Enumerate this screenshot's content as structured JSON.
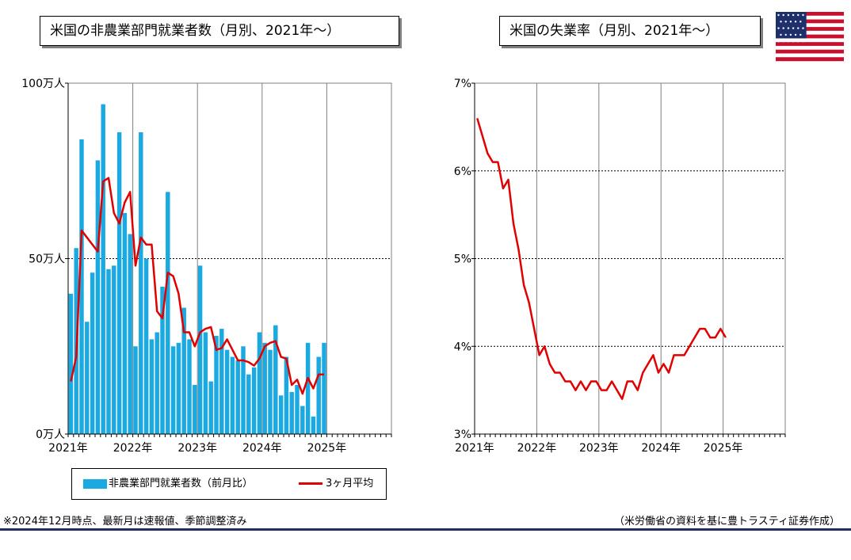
{
  "left_title": "米国の非農業部門就業者数（月別、2021年～）",
  "right_title": "米国の失業率（月別、2021年～）",
  "note_left": "※2024年12月時点、最新月は速報値、季節調整済み",
  "note_right": "（米労働省の資料を基に豊トラスティ証券作成）",
  "legend": {
    "bar_label": "非農業部門就業者数（前月比）",
    "line_label": "3ヶ月平均"
  },
  "colors": {
    "bar": "#1aa9e0",
    "line": "#e00000",
    "rule": "#1f2f5b"
  },
  "flag_icon": "us-flag-icon",
  "chart_data": [
    {
      "type": "bar",
      "title": "米国の非農業部門就業者数（月別、2021年～）",
      "xlabel": "",
      "ylabel": "",
      "x_ticks": [
        "2021年",
        "2022年",
        "2023年",
        "2024年",
        "2025年"
      ],
      "y_ticks": [
        "0万人",
        "50万人",
        "100万人"
      ],
      "ylim": [
        0,
        100
      ],
      "unit": "万人",
      "start": "2021-01",
      "axis_end": "2025-12",
      "grid": "horizontal dotted",
      "series": [
        {
          "name": "非農業部門就業者数（前月比）",
          "type": "bar",
          "values": [
            40,
            53,
            84,
            32,
            46,
            78,
            94,
            47,
            48,
            86,
            63,
            57,
            25,
            86,
            50,
            27,
            29,
            42,
            69,
            25,
            26,
            36,
            27,
            14,
            48,
            29,
            15,
            28,
            30,
            24,
            22,
            21,
            25,
            17,
            19,
            29,
            26,
            24,
            31,
            11,
            22,
            12,
            14,
            8,
            26,
            5,
            22,
            26
          ]
        },
        {
          "name": "3ヶ月平均",
          "type": "line",
          "values": [
            15,
            22,
            58,
            56,
            54,
            52,
            72,
            73,
            63,
            60,
            66,
            69,
            48,
            56,
            54,
            54,
            35,
            33,
            46,
            45,
            40,
            29,
            29,
            25,
            29,
            30,
            30.5,
            24,
            24.5,
            27,
            24,
            21,
            21,
            20.5,
            19.5,
            21.5,
            25,
            26,
            26.5,
            22,
            21.5,
            14,
            15.5,
            11.5,
            16,
            13,
            17,
            17
          ]
        }
      ]
    },
    {
      "type": "line",
      "title": "米国の失業率（月別、2021年～）",
      "xlabel": "",
      "ylabel": "",
      "x_ticks": [
        "2021年",
        "2022年",
        "2023年",
        "2024年",
        "2025年"
      ],
      "y_ticks": [
        "3%",
        "4%",
        "5%",
        "6%",
        "7%"
      ],
      "ylim": [
        3,
        7
      ],
      "unit": "%",
      "start": "2021-01",
      "axis_end": "2025-12",
      "grid": "horizontal dotted",
      "series": [
        {
          "name": "",
          "values": [
            6.6,
            6.4,
            6.2,
            6.1,
            6.1,
            5.8,
            5.9,
            5.4,
            5.1,
            4.7,
            4.5,
            4.2,
            3.9,
            4.0,
            3.8,
            3.7,
            3.7,
            3.6,
            3.6,
            3.5,
            3.6,
            3.5,
            3.6,
            3.6,
            3.5,
            3.5,
            3.6,
            3.5,
            3.4,
            3.6,
            3.6,
            3.5,
            3.7,
            3.8,
            3.9,
            3.7,
            3.8,
            3.7,
            3.9,
            3.9,
            3.9,
            4.0,
            4.1,
            4.2,
            4.2,
            4.1,
            4.1,
            4.2,
            4.1
          ]
        }
      ]
    }
  ]
}
